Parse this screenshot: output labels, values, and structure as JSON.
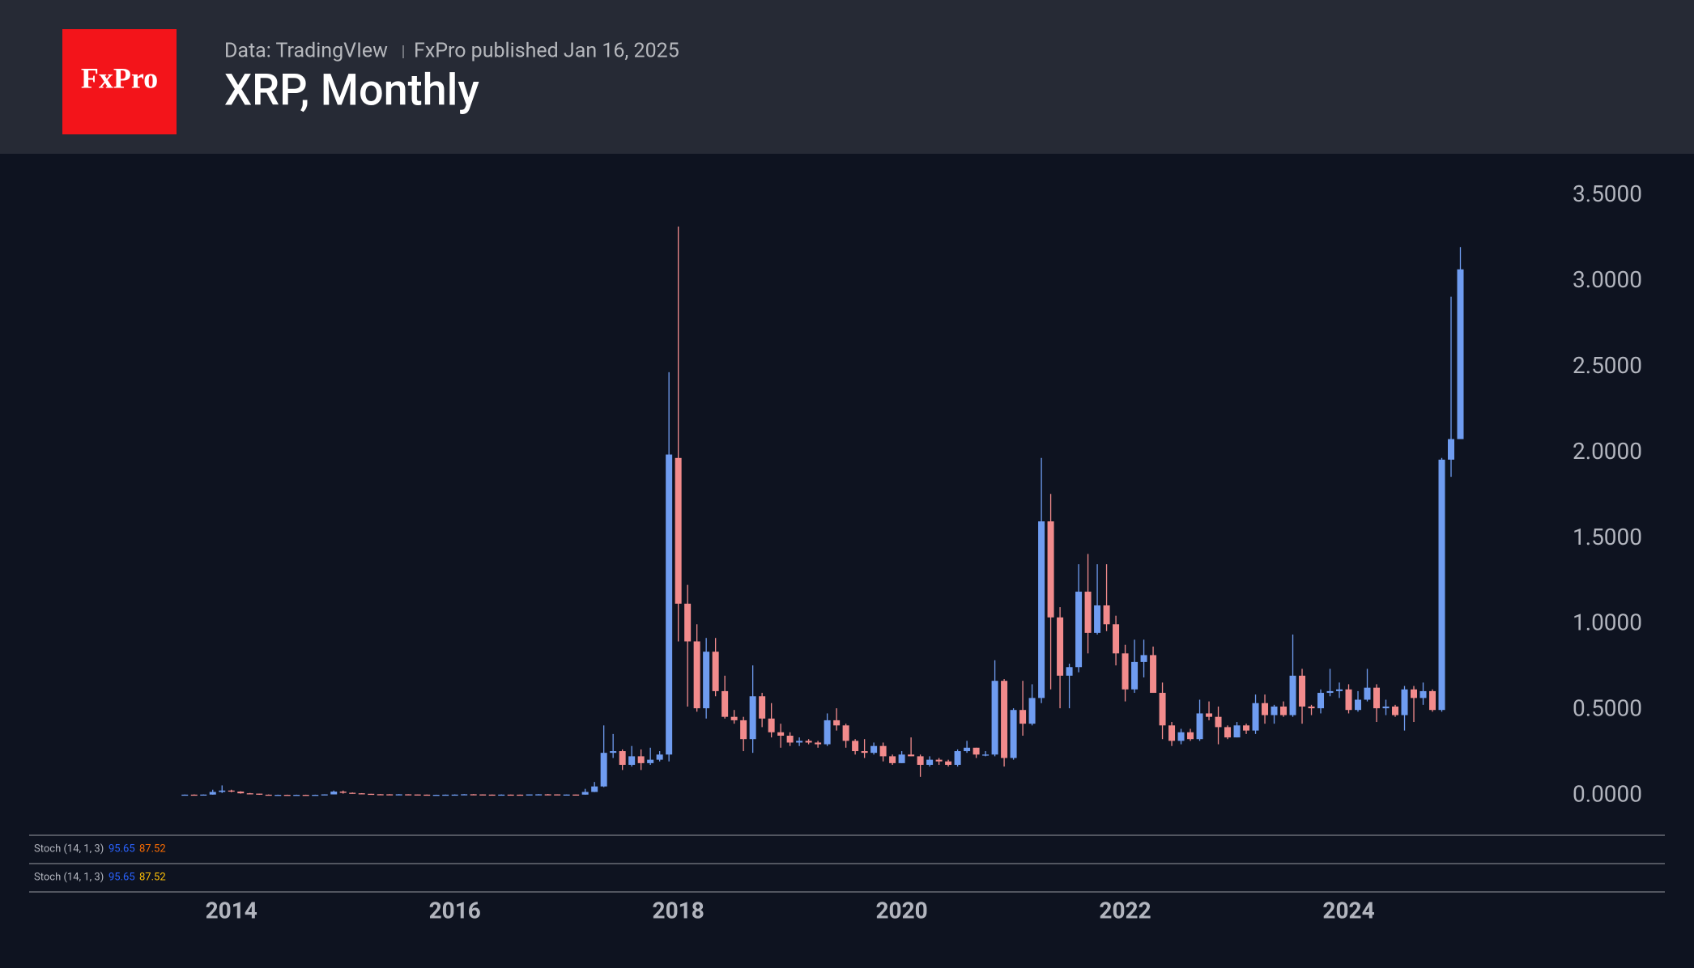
{
  "header": {
    "logo": "FxPro",
    "subtitle_source": "Data: TradingVIew",
    "subtitle_published": "FxPro published Jan 16, 2025",
    "title": "XRP, Monthly"
  },
  "chart_data": {
    "type": "candlestick",
    "up_color": "#6f9cf0",
    "down_color": "#f28b8c",
    "xlim": [
      2012.19,
      2026.83
    ],
    "xticks": [
      2014,
      2016,
      2018,
      2020,
      2022,
      2024
    ],
    "ylim": [
      -0.226,
      3.744
    ],
    "yticks": [
      {
        "value": 0,
        "label": "0.0000"
      },
      {
        "value": 0.5,
        "label": "0.5000"
      },
      {
        "value": 1,
        "label": "1.0000"
      },
      {
        "value": 1.5,
        "label": "1.5000"
      },
      {
        "value": 2,
        "label": "2.0000"
      },
      {
        "value": 2.5,
        "label": "2.5000"
      },
      {
        "value": 3,
        "label": "3.0000"
      },
      {
        "value": 3.5,
        "label": "3.5000"
      }
    ],
    "x": [
      "2013-08",
      "2013-09",
      "2013-10",
      "2013-11",
      "2013-12",
      "2014-01",
      "2014-02",
      "2014-03",
      "2014-04",
      "2014-05",
      "2014-06",
      "2014-07",
      "2014-08",
      "2014-09",
      "2014-10",
      "2014-11",
      "2014-12",
      "2015-01",
      "2015-02",
      "2015-03",
      "2015-04",
      "2015-05",
      "2015-06",
      "2015-07",
      "2015-08",
      "2015-09",
      "2015-10",
      "2015-11",
      "2015-12",
      "2016-01",
      "2016-02",
      "2016-03",
      "2016-04",
      "2016-05",
      "2016-06",
      "2016-07",
      "2016-08",
      "2016-09",
      "2016-10",
      "2016-11",
      "2016-12",
      "2017-01",
      "2017-02",
      "2017-03",
      "2017-04",
      "2017-05",
      "2017-06",
      "2017-07",
      "2017-08",
      "2017-09",
      "2017-10",
      "2017-11",
      "2017-12",
      "2018-01",
      "2018-02",
      "2018-03",
      "2018-04",
      "2018-05",
      "2018-06",
      "2018-07",
      "2018-08",
      "2018-09",
      "2018-10",
      "2018-11",
      "2018-12",
      "2019-01",
      "2019-02",
      "2019-03",
      "2019-04",
      "2019-05",
      "2019-06",
      "2019-07",
      "2019-08",
      "2019-09",
      "2019-10",
      "2019-11",
      "2019-12",
      "2020-01",
      "2020-02",
      "2020-03",
      "2020-04",
      "2020-05",
      "2020-06",
      "2020-07",
      "2020-08",
      "2020-09",
      "2020-10",
      "2020-11",
      "2020-12",
      "2021-01",
      "2021-02",
      "2021-03",
      "2021-04",
      "2021-05",
      "2021-06",
      "2021-07",
      "2021-08",
      "2021-09",
      "2021-10",
      "2021-11",
      "2021-12",
      "2022-01",
      "2022-02",
      "2022-03",
      "2022-04",
      "2022-05",
      "2022-06",
      "2022-07",
      "2022-08",
      "2022-09",
      "2022-10",
      "2022-11",
      "2022-12",
      "2023-01",
      "2023-02",
      "2023-03",
      "2023-04",
      "2023-05",
      "2023-06",
      "2023-07",
      "2023-08",
      "2023-09",
      "2023-10",
      "2023-11",
      "2023-12",
      "2024-01",
      "2024-02",
      "2024-03",
      "2024-04",
      "2024-05",
      "2024-06",
      "2024-07",
      "2024-08",
      "2024-09",
      "2024-10",
      "2024-11",
      "2024-12",
      "2025-01"
    ],
    "open": [
      0.0056,
      0.0062,
      0.0055,
      0.0066,
      0.022,
      0.03,
      0.024,
      0.014,
      0.012,
      0.006,
      0.005,
      0.005,
      0.0047,
      0.005,
      0.0049,
      0.0051,
      0.0076,
      0.024,
      0.017,
      0.014,
      0.011,
      0.0085,
      0.008,
      0.0072,
      0.008,
      0.0072,
      0.0062,
      0.0052,
      0.0052,
      0.006,
      0.0064,
      0.0082,
      0.0074,
      0.0064,
      0.0062,
      0.0064,
      0.0061,
      0.006,
      0.0075,
      0.008,
      0.0077,
      0.0065,
      0.0068,
      0.0063,
      0.022,
      0.054,
      0.25,
      0.26,
      0.18,
      0.23,
      0.19,
      0.21,
      0.24,
      1.97,
      1.12,
      0.9,
      0.51,
      0.84,
      0.61,
      0.46,
      0.44,
      0.33,
      0.58,
      0.45,
      0.37,
      0.35,
      0.31,
      0.32,
      0.31,
      0.3,
      0.44,
      0.41,
      0.32,
      0.26,
      0.25,
      0.29,
      0.23,
      0.19,
      0.24,
      0.23,
      0.18,
      0.21,
      0.2,
      0.18,
      0.26,
      0.28,
      0.24,
      0.24,
      0.67,
      0.22,
      0.5,
      0.42,
      0.57,
      1.6,
      1.04,
      0.7,
      0.75,
      1.19,
      0.95,
      1.11,
      1.0,
      0.83,
      0.62,
      0.78,
      0.82,
      0.6,
      0.41,
      0.32,
      0.37,
      0.33,
      0.48,
      0.46,
      0.4,
      0.34,
      0.41,
      0.38,
      0.54,
      0.47,
      0.52,
      0.47,
      0.7,
      0.52,
      0.51,
      0.6,
      0.61,
      0.62,
      0.5,
      0.56,
      0.63,
      0.51,
      0.52,
      0.47,
      0.62,
      0.57,
      0.61,
      0.5,
      1.96,
      2.08
    ],
    "high": [
      0.0067,
      0.0075,
      0.007,
      0.035,
      0.06,
      0.035,
      0.026,
      0.016,
      0.012,
      0.007,
      0.006,
      0.006,
      0.006,
      0.0058,
      0.006,
      0.008,
      0.03,
      0.03,
      0.019,
      0.015,
      0.011,
      0.009,
      0.0088,
      0.009,
      0.0085,
      0.0073,
      0.0065,
      0.0058,
      0.0065,
      0.0075,
      0.009,
      0.009,
      0.008,
      0.007,
      0.0075,
      0.0068,
      0.0067,
      0.0075,
      0.009,
      0.0095,
      0.008,
      0.0075,
      0.007,
      0.04,
      0.08,
      0.41,
      0.36,
      0.27,
      0.29,
      0.27,
      0.28,
      0.26,
      2.47,
      3.32,
      1.23,
      1.0,
      0.92,
      0.92,
      0.7,
      0.5,
      0.46,
      0.76,
      0.6,
      0.54,
      0.42,
      0.37,
      0.34,
      0.33,
      0.32,
      0.48,
      0.51,
      0.42,
      0.33,
      0.33,
      0.31,
      0.31,
      0.24,
      0.26,
      0.34,
      0.24,
      0.23,
      0.22,
      0.21,
      0.27,
      0.32,
      0.28,
      0.26,
      0.79,
      0.68,
      0.51,
      0.67,
      0.65,
      1.97,
      1.76,
      1.1,
      0.77,
      1.35,
      1.41,
      1.35,
      1.35,
      1.05,
      0.88,
      0.91,
      0.91,
      0.87,
      0.66,
      0.43,
      0.39,
      0.39,
      0.56,
      0.55,
      0.52,
      0.41,
      0.43,
      0.42,
      0.59,
      0.59,
      0.53,
      0.55,
      0.94,
      0.74,
      0.53,
      0.62,
      0.74,
      0.66,
      0.65,
      0.61,
      0.74,
      0.65,
      0.56,
      0.53,
      0.64,
      0.64,
      0.66,
      0.62,
      1.97,
      2.91,
      3.2
    ],
    "low": [
      0.0042,
      0.005,
      0.0048,
      0.006,
      0.016,
      0.02,
      0.012,
      0.01,
      0.005,
      0.004,
      0.004,
      0.004,
      0.004,
      0.004,
      0.0045,
      0.005,
      0.0075,
      0.012,
      0.012,
      0.01,
      0.008,
      0.0075,
      0.007,
      0.007,
      0.0068,
      0.006,
      0.0049,
      0.0045,
      0.005,
      0.0055,
      0.006,
      0.007,
      0.006,
      0.0056,
      0.0055,
      0.0058,
      0.0056,
      0.0058,
      0.0068,
      0.007,
      0.006,
      0.006,
      0.0058,
      0.006,
      0.021,
      0.05,
      0.22,
      0.15,
      0.17,
      0.15,
      0.18,
      0.2,
      0.2,
      0.9,
      0.52,
      0.49,
      0.45,
      0.58,
      0.45,
      0.42,
      0.26,
      0.25,
      0.4,
      0.34,
      0.28,
      0.29,
      0.29,
      0.3,
      0.28,
      0.29,
      0.38,
      0.28,
      0.24,
      0.22,
      0.24,
      0.2,
      0.18,
      0.19,
      0.23,
      0.11,
      0.17,
      0.18,
      0.17,
      0.17,
      0.25,
      0.22,
      0.23,
      0.23,
      0.17,
      0.21,
      0.35,
      0.41,
      0.54,
      0.62,
      0.51,
      0.51,
      0.72,
      0.83,
      0.94,
      0.96,
      0.76,
      0.55,
      0.6,
      0.69,
      0.6,
      0.33,
      0.29,
      0.3,
      0.32,
      0.32,
      0.44,
      0.3,
      0.33,
      0.34,
      0.36,
      0.36,
      0.42,
      0.42,
      0.46,
      0.46,
      0.42,
      0.47,
      0.48,
      0.58,
      0.57,
      0.48,
      0.49,
      0.55,
      0.43,
      0.47,
      0.46,
      0.38,
      0.43,
      0.53,
      0.49,
      0.49,
      1.86,
      2.08
    ],
    "close": [
      0.0062,
      0.0055,
      0.0066,
      0.022,
      0.03,
      0.024,
      0.014,
      0.012,
      0.006,
      0.005,
      0.005,
      0.0047,
      0.005,
      0.0049,
      0.0051,
      0.0076,
      0.024,
      0.017,
      0.014,
      0.011,
      0.0085,
      0.008,
      0.0072,
      0.008,
      0.0072,
      0.0062,
      0.0052,
      0.0052,
      0.006,
      0.0064,
      0.0082,
      0.0074,
      0.0064,
      0.0062,
      0.0064,
      0.0061,
      0.006,
      0.0075,
      0.008,
      0.0077,
      0.0065,
      0.0068,
      0.0063,
      0.022,
      0.054,
      0.25,
      0.26,
      0.18,
      0.23,
      0.19,
      0.21,
      0.24,
      1.99,
      1.12,
      0.9,
      0.51,
      0.84,
      0.61,
      0.46,
      0.44,
      0.33,
      0.58,
      0.45,
      0.37,
      0.35,
      0.31,
      0.32,
      0.31,
      0.3,
      0.44,
      0.41,
      0.32,
      0.26,
      0.25,
      0.29,
      0.23,
      0.19,
      0.24,
      0.23,
      0.18,
      0.21,
      0.2,
      0.18,
      0.26,
      0.28,
      0.24,
      0.24,
      0.67,
      0.22,
      0.5,
      0.42,
      0.57,
      1.6,
      1.04,
      0.7,
      0.75,
      1.19,
      0.95,
      1.11,
      1.0,
      0.83,
      0.62,
      0.78,
      0.82,
      0.6,
      0.41,
      0.32,
      0.37,
      0.33,
      0.48,
      0.46,
      0.4,
      0.34,
      0.41,
      0.38,
      0.54,
      0.47,
      0.52,
      0.47,
      0.7,
      0.52,
      0.51,
      0.6,
      0.61,
      0.62,
      0.5,
      0.56,
      0.63,
      0.51,
      0.52,
      0.47,
      0.62,
      0.57,
      0.61,
      0.5,
      1.96,
      2.08,
      3.07
    ],
    "indicators": [
      {
        "label": "Stoch (14, 1, 3)",
        "k": 95.65,
        "d": 87.52,
        "k_color": "#2962ff",
        "d_color": "#ff6d00"
      },
      {
        "label": "Stoch (14, 1, 3)",
        "k": 95.65,
        "d": 87.52,
        "k_color": "#2962ff",
        "d_color": "#ffc107"
      }
    ]
  }
}
